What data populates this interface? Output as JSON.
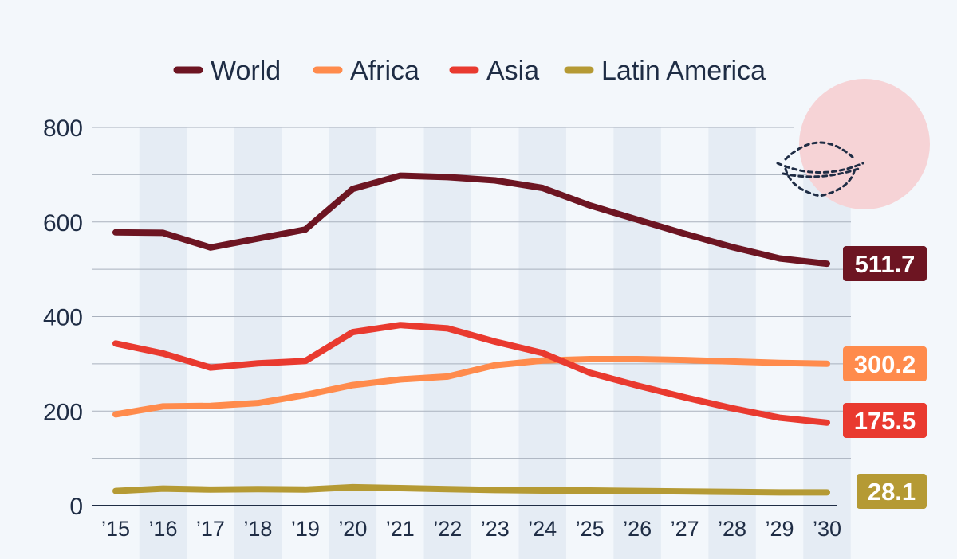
{
  "chart_data": {
    "type": "line",
    "categories": [
      "’15",
      "’16",
      "’17",
      "’18",
      "’19",
      "’20",
      "’21",
      "’22",
      "’23",
      "’24",
      "’25",
      "’26",
      "’27",
      "’28",
      "’29",
      "’30"
    ],
    "ylim": [
      0,
      800
    ],
    "yticks": [
      "0",
      "200",
      "400",
      "600",
      "800"
    ],
    "grid": true,
    "legend_position": "top",
    "series": [
      {
        "name": "World",
        "color": "#6d1522",
        "values": [
          578,
          577,
          546,
          565,
          584,
          670,
          698,
          695,
          688,
          672,
          635,
          605,
          575,
          547,
          523,
          511.7
        ],
        "end_label": "511.7"
      },
      {
        "name": "Africa",
        "color": "#ff8b4c",
        "values": [
          193,
          210,
          211,
          217,
          234,
          255,
          267,
          273,
          297,
          307,
          310,
          310,
          308,
          305,
          302,
          300.2
        ],
        "end_label": "300.2"
      },
      {
        "name": "Asia",
        "color": "#e93a2f",
        "values": [
          343,
          322,
          292,
          301,
          306,
          367,
          382,
          375,
          347,
          323,
          281,
          254,
          229,
          206,
          186,
          175.5
        ],
        "end_label": "175.5"
      },
      {
        "name": "Latin America",
        "color": "#b59a34",
        "values": [
          31,
          36,
          34,
          35,
          34,
          39,
          37,
          35,
          33,
          32,
          32,
          31,
          30,
          29,
          28,
          28.1
        ],
        "end_label": "28.1"
      }
    ]
  },
  "decoration": {
    "icon": "rice-bowl-icon",
    "circle_color": "#f6d3d6"
  }
}
